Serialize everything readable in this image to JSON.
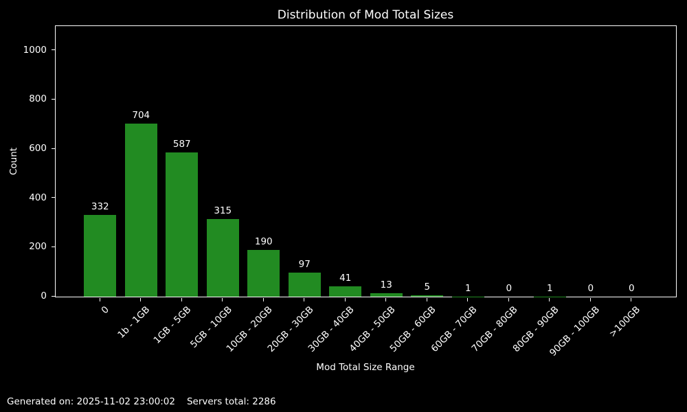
{
  "footer": {
    "generated": "Generated on: 2025-11-02 23:00:02",
    "servers_total": "Servers total: 2286"
  },
  "chart_data": {
    "type": "bar",
    "title": "Distribution of Mod Total Sizes",
    "xlabel": "Mod Total Size Range",
    "ylabel": "Count",
    "categories": [
      "0",
      "1b - 1GB",
      "1GB - 5GB",
      "5GB - 10GB",
      "10GB - 20GB",
      "20GB - 30GB",
      "30GB - 40GB",
      "40GB - 50GB",
      "50GB - 60GB",
      "60GB - 70GB",
      "70GB - 80GB",
      "80GB - 90GB",
      "90GB - 100GB",
      ">100GB"
    ],
    "values": [
      332,
      704,
      587,
      315,
      190,
      97,
      41,
      13,
      5,
      1,
      0,
      1,
      0,
      0
    ],
    "bar_labels": true,
    "bar_color": "#228B22",
    "background_color": "#000000",
    "text_color": "#ffffff",
    "ylim": [
      0,
      1100
    ],
    "yticks": [
      0,
      200,
      400,
      600,
      800,
      1000
    ],
    "xtick_rotation": 45,
    "grid": false,
    "legend": null
  }
}
